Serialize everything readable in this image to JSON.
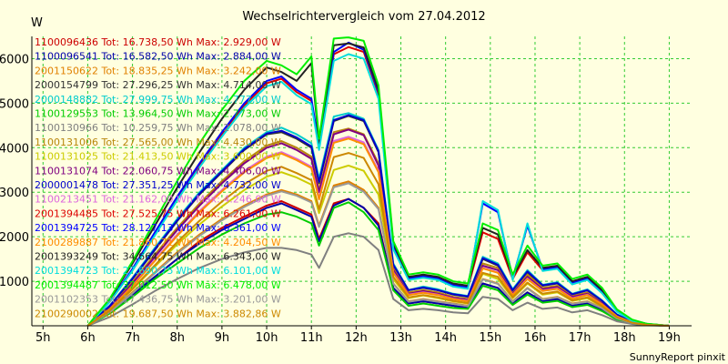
{
  "chart_data": {
    "type": "line",
    "title": "Wechselrichtervergleich vom 27.04.2012",
    "ylabel": "W",
    "footer": "SunnyReport pinxit",
    "background_color": "#ffffe0",
    "grid": true,
    "grid_color": "#33cc33",
    "grid_style": "dashed",
    "legend_position": "top-left",
    "xlim": [
      4.75,
      19.5
    ],
    "ylim": [
      0,
      6500
    ],
    "x_ticks": [
      5,
      6,
      7,
      8,
      9,
      10,
      11,
      12,
      13,
      14,
      15,
      16,
      17,
      18,
      19
    ],
    "x_tick_labels": [
      "5h",
      "6h",
      "7h",
      "8h",
      "9h",
      "10h",
      "11h",
      "12h",
      "13h",
      "14h",
      "15h",
      "16h",
      "17h",
      "18h",
      "19h"
    ],
    "y_ticks": [
      1000,
      2000,
      3000,
      4000,
      5000,
      6000
    ],
    "y_tick_labels": [
      "1000",
      "2000",
      "3000",
      "4000",
      "5000",
      "6000"
    ],
    "x": [
      6.0,
      6.5,
      7.0,
      7.5,
      8.0,
      8.5,
      9.0,
      9.5,
      10.0,
      10.33,
      10.67,
      11.0,
      11.17,
      11.5,
      11.83,
      12.17,
      12.5,
      12.83,
      13.17,
      13.5,
      13.83,
      14.17,
      14.5,
      14.83,
      15.17,
      15.5,
      15.83,
      16.17,
      16.5,
      16.83,
      17.17,
      17.5,
      17.83,
      18.17,
      18.5,
      19.0
    ],
    "series": [
      {
        "name": "1100096436 Tot: 16.738,50 Wh Max: 2.929,00 W",
        "label": "1100096436 Tot: 16.738,50 Wh Max: 2.929,00 W",
        "color": "#cc0000",
        "values": [
          0,
          300,
          700,
          1100,
          1500,
          1900,
          2200,
          2450,
          2700,
          2800,
          2650,
          2500,
          1950,
          2750,
          2850,
          2650,
          2300,
          850,
          500,
          550,
          500,
          450,
          400,
          950,
          850,
          500,
          750,
          550,
          600,
          450,
          500,
          350,
          150,
          60,
          20,
          0
        ]
      },
      {
        "name": "1100096541 Tot: 16.582,50 Wh Max: 2.884,00 W",
        "label": "1100096541 Tot: 16.582,50 Wh Max: 2.884,00 W",
        "color": "#0000aa",
        "values": [
          0,
          300,
          700,
          1100,
          1500,
          1850,
          2150,
          2400,
          2650,
          2750,
          2600,
          2450,
          1900,
          2700,
          2850,
          2650,
          2250,
          850,
          500,
          550,
          500,
          450,
          400,
          950,
          850,
          500,
          750,
          550,
          600,
          450,
          500,
          350,
          150,
          60,
          20,
          0
        ]
      },
      {
        "name": "2001150622 Tot: 18.835,25 Wh Max: 3.242,00 W",
        "label": "2001150622 Tot: 18.835,25 Wh Max: 3.242,00 W",
        "color": "#e08000",
        "values": [
          0,
          320,
          750,
          1200,
          1650,
          2050,
          2400,
          2700,
          2950,
          3050,
          2950,
          2800,
          2250,
          3150,
          3242,
          3050,
          2650,
          950,
          550,
          600,
          550,
          500,
          450,
          1050,
          950,
          550,
          850,
          600,
          650,
          500,
          550,
          400,
          170,
          70,
          20,
          0
        ]
      },
      {
        "name": "2000154799 Tot: 27.296,25 Wh Max: 4.714,00 W",
        "label": "2000154799 Tot: 27.296,25 Wh Max: 4.714,00 W",
        "color": "#333333",
        "values": [
          0,
          450,
          1050,
          1700,
          2350,
          2950,
          3450,
          3950,
          4300,
          4350,
          4200,
          4000,
          3200,
          4600,
          4714,
          4600,
          3900,
          1350,
          800,
          850,
          800,
          700,
          650,
          1500,
          1350,
          800,
          1200,
          900,
          950,
          700,
          800,
          550,
          250,
          90,
          30,
          0
        ]
      },
      {
        "name": "2000148882 Tot: 27.999,75 Wh Max: 4.777,00 W",
        "label": "2000148882 Tot: 27.999,75 Wh Max: 4.777,00 W",
        "color": "#00cccc",
        "values": [
          0,
          460,
          1080,
          1750,
          2400,
          3000,
          3500,
          4000,
          4350,
          4450,
          4300,
          4100,
          3300,
          4700,
          4777,
          4650,
          3950,
          1400,
          800,
          880,
          820,
          720,
          670,
          1550,
          1400,
          820,
          1250,
          920,
          980,
          720,
          820,
          570,
          260,
          90,
          30,
          0
        ]
      },
      {
        "name": "1100129553 Tot: 13.964,50 Wh Max: 2.773,00 W",
        "label": "1100129553 Tot: 13.964,50 Wh Max: 2.773,00 W",
        "color": "#00cc00",
        "values": [
          0,
          280,
          650,
          1050,
          1400,
          1750,
          2050,
          2300,
          2500,
          2550,
          2450,
          2300,
          1800,
          2650,
          2773,
          2550,
          2150,
          800,
          450,
          500,
          450,
          400,
          380,
          900,
          800,
          470,
          700,
          520,
          560,
          420,
          470,
          330,
          140,
          50,
          15,
          0
        ]
      },
      {
        "name": "1100130966 Tot: 10.259,75 Wh Max: 2.078,00 W",
        "label": "1100130966 Tot: 10.259,75 Wh Max: 2.078,00 W",
        "color": "#808080",
        "values": [
          0,
          200,
          480,
          780,
          1050,
          1300,
          1500,
          1650,
          1750,
          1750,
          1700,
          1600,
          1300,
          2000,
          2078,
          2000,
          1700,
          600,
          350,
          380,
          350,
          300,
          280,
          650,
          600,
          350,
          520,
          380,
          410,
          300,
          350,
          240,
          100,
          40,
          10,
          0
        ]
      },
      {
        "name": "1100131006 Tot: 27.565,00 Wh Max: 4.430,00 W",
        "label": "1100131006 Tot: 27.565,00 Wh Max: 4.430,00 W",
        "color": "#b8860b",
        "values": [
          0,
          420,
          980,
          1600,
          2200,
          2750,
          3250,
          3700,
          4050,
          4150,
          4000,
          3800,
          3050,
          4350,
          4430,
          4300,
          3650,
          1300,
          750,
          800,
          750,
          650,
          600,
          1400,
          1300,
          750,
          1150,
          850,
          900,
          670,
          750,
          520,
          230,
          80,
          25,
          0
        ]
      },
      {
        "name": "1100131025 Tot: 21.413,50 Wh Max: 3.600,00 W",
        "label": "1100131025 Tot: 21.413,50 Wh Max: 3.600,00 W",
        "color": "#cccc00",
        "values": [
          0,
          350,
          820,
          1330,
          1830,
          2280,
          2680,
          3050,
          3350,
          3450,
          3330,
          3170,
          2530,
          3500,
          3600,
          3480,
          2950,
          1050,
          620,
          680,
          620,
          550,
          500,
          1170,
          1050,
          620,
          950,
          700,
          750,
          560,
          620,
          430,
          190,
          70,
          20,
          0
        ]
      },
      {
        "name": "1100131074 Tot: 22.060,75 Wh Max: 4.406,00 W",
        "label": "1100131074 Tot: 22.060,75 Wh Max: 4.406,00 W",
        "color": "#800080",
        "values": [
          0,
          400,
          950,
          1550,
          2150,
          2700,
          3200,
          3650,
          4000,
          4100,
          3950,
          3750,
          3000,
          4300,
          4406,
          4280,
          3600,
          1250,
          720,
          780,
          720,
          630,
          580,
          1350,
          1250,
          720,
          1100,
          820,
          870,
          650,
          720,
          500,
          220,
          80,
          25,
          0
        ]
      },
      {
        "name": "2000001478 Tot: 27.351,25 Wh Max: 4.732,00 W",
        "label": "2000001478 Tot: 27.351,25 Wh Max: 4.732,00 W",
        "color": "#0000cc",
        "values": [
          0,
          455,
          1060,
          1720,
          2370,
          2970,
          3470,
          3970,
          4320,
          4380,
          4230,
          4030,
          3230,
          4620,
          4732,
          4620,
          3920,
          1370,
          800,
          860,
          800,
          710,
          660,
          1520,
          1370,
          800,
          1220,
          910,
          960,
          710,
          800,
          560,
          250,
          90,
          30,
          0
        ]
      },
      {
        "name": "1100213451 Tot: 21.162,00 Wh Max: 4.246,00 W",
        "label": "1100213451 Tot: 21.162,00 Wh Max: 4.246,00 W",
        "color": "#dd66dd",
        "values": [
          0,
          380,
          900,
          1480,
          2050,
          2580,
          3050,
          3480,
          3800,
          3900,
          3750,
          3570,
          2870,
          4150,
          4246,
          4120,
          3480,
          1200,
          700,
          750,
          700,
          610,
          560,
          1300,
          1200,
          700,
          1060,
          790,
          840,
          620,
          700,
          480,
          210,
          75,
          25,
          0
        ]
      },
      {
        "name": "2001394485 Tot: 27.525,75 Wh Max: 6.261,00 W",
        "label": "2001394485 Tot: 27.525,75 Wh Max: 6.261,00 W",
        "color": "#dd0000",
        "values": [
          0,
          550,
          1250,
          2050,
          2850,
          3600,
          4300,
          4950,
          5450,
          5550,
          5250,
          5050,
          4000,
          6100,
          6261,
          6150,
          5200,
          1750,
          1050,
          1100,
          1050,
          900,
          850,
          2100,
          1950,
          1050,
          1650,
          1250,
          1300,
          950,
          1050,
          750,
          330,
          120,
          40,
          0
        ]
      },
      {
        "name": "2001394725 Tot: 28.127,13 Wh Max: 6.361,00 W",
        "label": "2001394725 Tot: 28.127,13 Wh Max: 6.361,00 W",
        "color": "#0000ff",
        "values": [
          0,
          560,
          1280,
          2100,
          2900,
          3650,
          4350,
          5000,
          5500,
          5600,
          5300,
          5100,
          4050,
          6150,
          6361,
          6200,
          5250,
          1780,
          1070,
          1120,
          1070,
          920,
          870,
          2750,
          2550,
          1070,
          2250,
          1270,
          1320,
          970,
          1070,
          770,
          340,
          120,
          40,
          0
        ]
      },
      {
        "name": "2100289887 Tot: 21.860,71 Wh Max: 4.204,50 W",
        "label": "2100289887 Tot: 21.860,71 Wh Max: 4.204,50 W",
        "color": "#ff8c00",
        "values": [
          0,
          380,
          890,
          1460,
          2020,
          2550,
          3020,
          3450,
          3770,
          3870,
          3720,
          3540,
          2840,
          4110,
          4204,
          4080,
          3450,
          1190,
          690,
          740,
          690,
          600,
          550,
          1290,
          1190,
          690,
          1050,
          780,
          830,
          610,
          690,
          480,
          210,
          75,
          25,
          0
        ]
      },
      {
        "name": "2001393249 Tot: 34.664,75 Wh Max: 6.343,00 W",
        "label": "2001393249 Tot: 34.664,75 Wh Max: 6.343,00 W",
        "color": "#222222",
        "values": [
          0,
          600,
          1400,
          2250,
          3100,
          3900,
          4650,
          5300,
          5800,
          5700,
          5500,
          5900,
          4100,
          6300,
          6343,
          6250,
          5300,
          1850,
          1100,
          1150,
          1100,
          950,
          900,
          2200,
          2050,
          1100,
          1700,
          1300,
          1350,
          1000,
          1100,
          800,
          350,
          130,
          40,
          0
        ]
      },
      {
        "name": "2001394723 Tot: 27.690,75 Wh Max: 6.101,00 W",
        "label": "2001394723 Tot: 27.690,75 Wh Max: 6.101,00 W",
        "color": "#00dddd",
        "values": [
          0,
          545,
          1240,
          2030,
          2820,
          3560,
          4250,
          4900,
          5380,
          5480,
          5180,
          4980,
          3950,
          5950,
          6101,
          6000,
          5100,
          1720,
          1030,
          1080,
          1030,
          880,
          830,
          2800,
          2600,
          1030,
          2300,
          1230,
          1280,
          930,
          1030,
          730,
          320,
          110,
          40,
          0
        ]
      },
      {
        "name": "2001394487 Tot: 37.012,50 Wh Max: 6.478,00 W",
        "label": "2001394487 Tot: 37.012,50 Wh Max: 6.478,00 W",
        "color": "#00ee00",
        "values": [
          0,
          620,
          1450,
          2350,
          3250,
          4100,
          4850,
          5500,
          5950,
          5850,
          5650,
          6050,
          4200,
          6450,
          6478,
          6400,
          5400,
          1900,
          1150,
          1200,
          1150,
          1000,
          950,
          2300,
          2150,
          1150,
          1800,
          1350,
          1400,
          1050,
          1150,
          850,
          370,
          140,
          45,
          0
        ]
      },
      {
        "name": "2001102353 Tot: 17.436,75 Wh Max: 3.201,00 W",
        "label": "2001102353 Tot: 17.436,75 Wh Max: 3.201,00 W",
        "color": "#999999",
        "values": [
          0,
          310,
          730,
          1180,
          1620,
          2020,
          2370,
          2670,
          2920,
          3020,
          2920,
          2770,
          2220,
          3110,
          3201,
          3010,
          2620,
          940,
          540,
          590,
          540,
          490,
          440,
          1040,
          940,
          540,
          840,
          590,
          640,
          490,
          540,
          390,
          165,
          65,
          20,
          0
        ]
      },
      {
        "name": "2100290002 Tot: 19.687,50 Wh Max: 3.882,86 W",
        "label": "2100290002 Tot: 19.687,50 Wh Max: 3.882,86 W",
        "color": "#cc8800",
        "values": [
          0,
          350,
          830,
          1360,
          1880,
          2360,
          2790,
          3180,
          3480,
          3570,
          3430,
          3270,
          2620,
          3790,
          3882,
          3770,
          3180,
          1100,
          640,
          690,
          640,
          560,
          510,
          1190,
          1100,
          640,
          970,
          720,
          770,
          570,
          640,
          440,
          190,
          70,
          20,
          0
        ]
      }
    ]
  }
}
